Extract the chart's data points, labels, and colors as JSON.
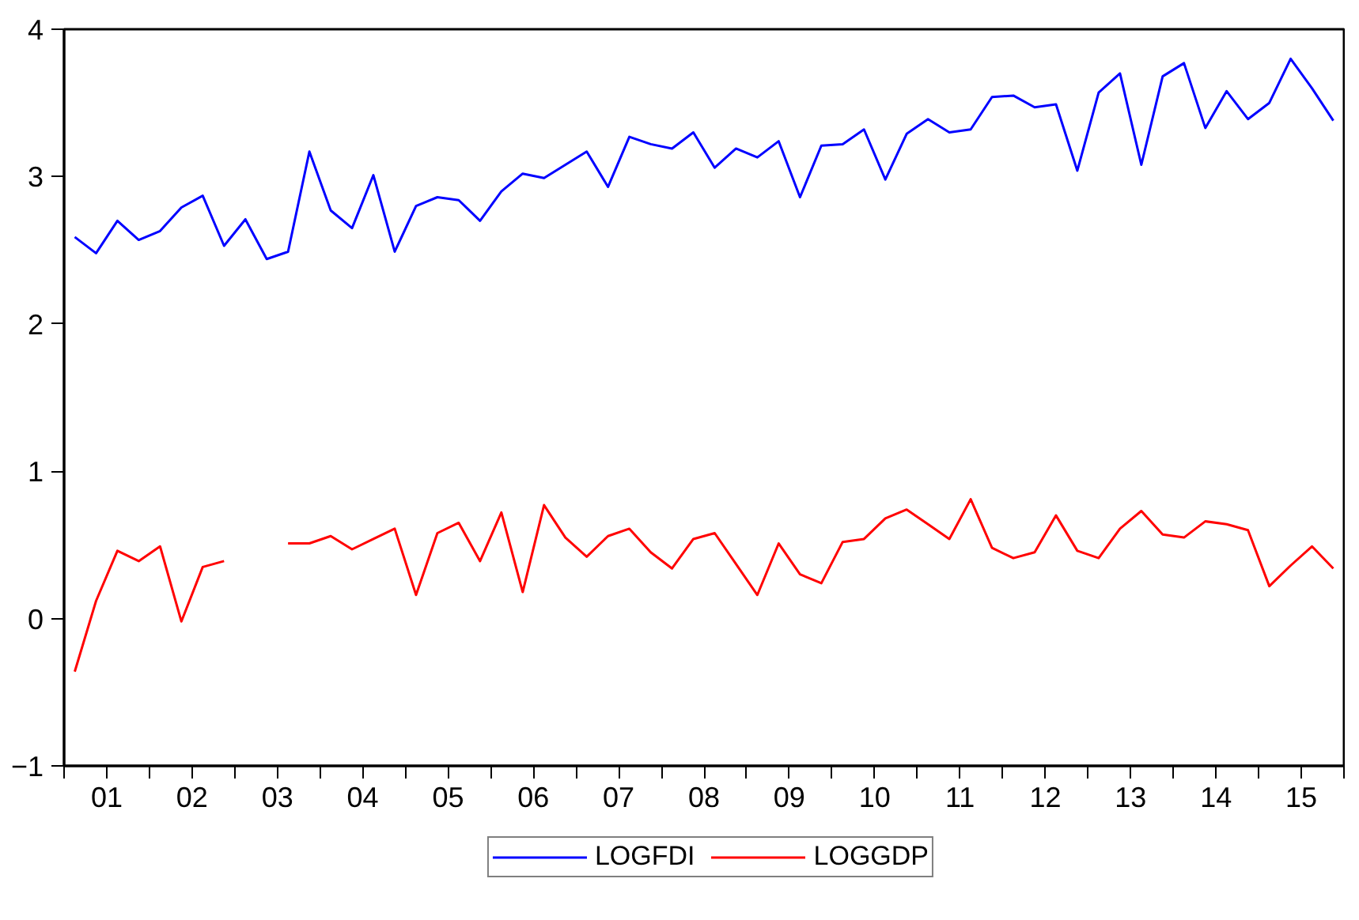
{
  "chart_data": {
    "type": "line",
    "x": [
      0.625,
      0.875,
      1.125,
      1.375,
      1.625,
      1.875,
      2.125,
      2.375,
      2.625,
      2.875,
      3.125,
      3.375,
      3.625,
      3.875,
      4.125,
      4.375,
      4.625,
      4.875,
      5.125,
      5.375,
      5.625,
      5.875,
      6.125,
      6.375,
      6.625,
      6.875,
      7.125,
      7.375,
      7.625,
      7.875,
      8.125,
      8.375,
      8.625,
      8.875,
      9.125,
      9.375,
      9.625,
      9.875,
      10.125,
      10.375,
      10.625,
      10.875,
      11.125,
      11.375,
      11.625,
      11.875,
      12.125,
      12.375,
      12.625,
      12.875,
      13.125,
      13.375,
      13.625,
      13.875,
      14.125,
      14.375,
      14.625,
      14.875,
      15.125,
      15.375
    ],
    "series": [
      {
        "name": "LOGFDI",
        "color": "#0000ff",
        "values": [
          2.59,
          2.48,
          2.7,
          2.57,
          2.63,
          2.79,
          2.87,
          2.53,
          2.71,
          2.44,
          2.49,
          3.17,
          2.77,
          2.65,
          3.01,
          2.49,
          2.8,
          2.86,
          2.84,
          2.7,
          2.9,
          3.02,
          2.99,
          3.08,
          3.17,
          2.93,
          3.27,
          3.22,
          3.19,
          3.3,
          3.06,
          3.19,
          3.13,
          3.24,
          2.86,
          3.21,
          3.22,
          3.32,
          2.98,
          3.29,
          3.39,
          3.3,
          3.32,
          3.54,
          3.55,
          3.47,
          3.49,
          3.04,
          3.57,
          3.7,
          3.08,
          3.68,
          3.77,
          3.33,
          3.58,
          3.39,
          3.5,
          3.8,
          3.6,
          3.38
        ]
      },
      {
        "name": "LOGGDP",
        "color": "#ff0000",
        "values": [
          -0.36,
          0.12,
          0.46,
          0.39,
          0.49,
          -0.02,
          0.35,
          0.39,
          null,
          null,
          0.51,
          0.51,
          0.56,
          0.47,
          0.54,
          0.61,
          0.16,
          0.58,
          0.65,
          0.39,
          0.72,
          0.18,
          0.77,
          0.55,
          0.42,
          0.56,
          0.61,
          0.45,
          0.34,
          0.54,
          0.58,
          0.37,
          0.16,
          0.51,
          0.3,
          0.24,
          0.52,
          0.54,
          0.68,
          0.74,
          0.64,
          0.54,
          0.81,
          0.48,
          0.41,
          0.45,
          0.7,
          0.46,
          0.41,
          0.61,
          0.73,
          0.57,
          0.55,
          0.66,
          0.64,
          0.6,
          0.22,
          0.36,
          0.49,
          0.34
        ]
      }
    ],
    "xlim": [
      0.5,
      15.5
    ],
    "xticks": [
      {
        "value": 0.5,
        "label": null
      },
      {
        "value": 1,
        "label": "01"
      },
      {
        "value": 1.5,
        "label": null
      },
      {
        "value": 2,
        "label": "02"
      },
      {
        "value": 2.5,
        "label": null
      },
      {
        "value": 3,
        "label": "03"
      },
      {
        "value": 3.5,
        "label": null
      },
      {
        "value": 4,
        "label": "04"
      },
      {
        "value": 4.5,
        "label": null
      },
      {
        "value": 5,
        "label": "05"
      },
      {
        "value": 5.5,
        "label": null
      },
      {
        "value": 6,
        "label": "06"
      },
      {
        "value": 6.5,
        "label": null
      },
      {
        "value": 7,
        "label": "07"
      },
      {
        "value": 7.5,
        "label": null
      },
      {
        "value": 8,
        "label": "08"
      },
      {
        "value": 8.5,
        "label": null
      },
      {
        "value": 9,
        "label": "09"
      },
      {
        "value": 9.5,
        "label": null
      },
      {
        "value": 10,
        "label": "10"
      },
      {
        "value": 10.5,
        "label": null
      },
      {
        "value": 11,
        "label": "11"
      },
      {
        "value": 11.5,
        "label": null
      },
      {
        "value": 12,
        "label": "12"
      },
      {
        "value": 12.5,
        "label": null
      },
      {
        "value": 13,
        "label": "13"
      },
      {
        "value": 13.5,
        "label": null
      },
      {
        "value": 14,
        "label": "14"
      },
      {
        "value": 14.5,
        "label": null
      },
      {
        "value": 15,
        "label": "15"
      },
      {
        "value": 15.5,
        "label": null
      }
    ],
    "ylim": [
      -1,
      4
    ],
    "yticks": [
      -1,
      0,
      1,
      2,
      3,
      4
    ],
    "grid": false,
    "legend": "bottom",
    "line_style": "solid",
    "marker": "none"
  }
}
